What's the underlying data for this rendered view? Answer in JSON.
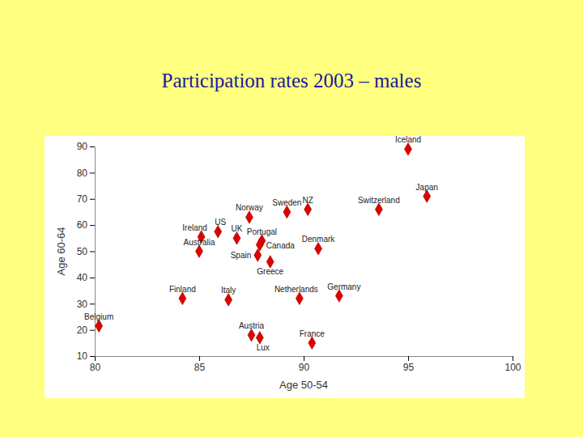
{
  "chart_data": {
    "type": "scatter",
    "title": "Participation rates 2003 – males",
    "x_label": "Age 50-54",
    "y_label": "Age 60-64",
    "labels": [
      "Iceland",
      "Japan",
      "Switzerland",
      "NZ",
      "Sweden",
      "Norway",
      "US",
      "Ireland",
      "UK",
      "Portugal",
      "Canada",
      "Australia",
      "Denmark",
      "Spain",
      "Greece",
      "Finland",
      "Italy",
      "Netherlands",
      "Germany",
      "Belgium",
      "Austria",
      "Lux",
      "France"
    ],
    "x": [
      95.0,
      95.9,
      93.6,
      90.2,
      89.2,
      87.4,
      85.9,
      85.1,
      86.8,
      88.0,
      87.9,
      85.0,
      90.7,
      87.8,
      88.4,
      84.2,
      86.4,
      89.8,
      91.7,
      80.2,
      87.5,
      87.9,
      90.4
    ],
    "values": [
      89,
      71,
      66,
      66,
      65,
      63,
      57.5,
      55.5,
      55,
      54,
      52.5,
      50,
      51,
      48.5,
      46,
      32,
      31.5,
      32,
      33,
      21.5,
      18,
      17,
      15
    ],
    "color": "#e00000",
    "marker": "diamond",
    "grid": false,
    "xlim": [
      80,
      100
    ],
    "xticks": [
      80,
      85,
      90,
      95,
      100
    ],
    "ylim": [
      10,
      90
    ],
    "yticks": [
      10,
      20,
      30,
      40,
      50,
      60,
      70,
      80,
      90
    ]
  }
}
